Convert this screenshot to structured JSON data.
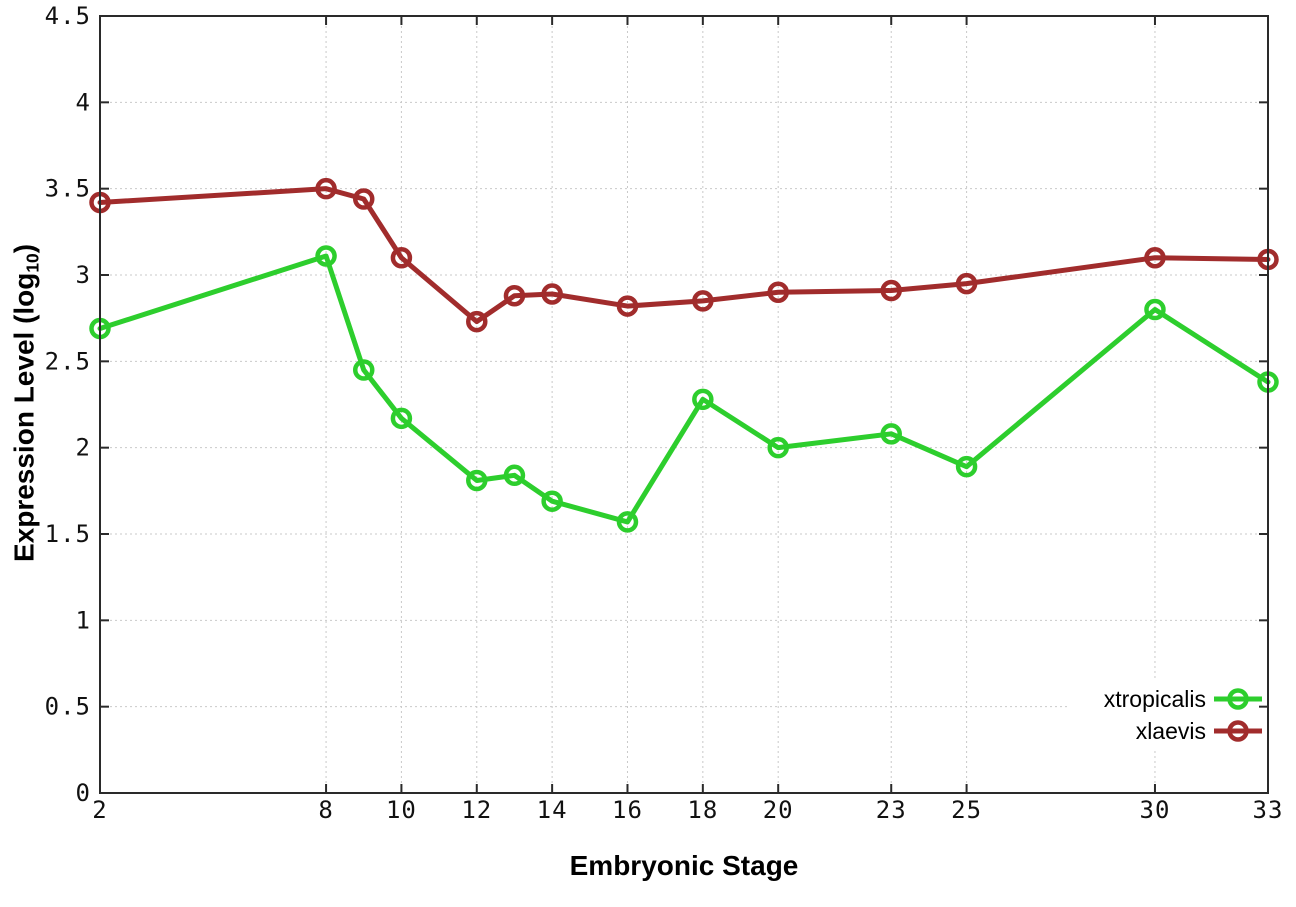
{
  "chart_data": {
    "type": "line",
    "title": "",
    "xlabel": "Embryonic Stage",
    "ylabel": "Expression Level (log10)",
    "ylabel_parts": {
      "main": "Expression Level (log",
      "sub": "10",
      "end": ")"
    },
    "xlim": [
      2,
      33
    ],
    "ylim": [
      0,
      4.5
    ],
    "grid": true,
    "legend_position": "bottom-right-inside",
    "x_ticks": [
      2,
      8,
      10,
      12,
      14,
      16,
      18,
      20,
      23,
      25,
      30,
      33
    ],
    "x_tick_labels": [
      "2",
      "8",
      "10",
      "12",
      "14",
      "16",
      "18",
      "20",
      "23",
      "25",
      "30",
      "33"
    ],
    "y_ticks": [
      0,
      0.5,
      1,
      1.5,
      2,
      2.5,
      3,
      3.5,
      4,
      4.5
    ],
    "y_tick_labels": [
      "0",
      "0.5",
      "1",
      "1.5",
      "2",
      "2.5",
      "3",
      "3.5",
      "4",
      "4.5"
    ],
    "x": [
      2,
      8,
      9,
      10,
      12,
      13,
      14,
      16,
      18,
      20,
      23,
      25,
      30,
      33
    ],
    "series": [
      {
        "name": "xtropicalis",
        "color": "#2dce2d",
        "values": [
          2.69,
          3.11,
          2.45,
          2.17,
          1.81,
          1.84,
          1.69,
          1.57,
          2.28,
          2.0,
          2.08,
          1.89,
          2.8,
          2.38
        ]
      },
      {
        "name": "xlaevis",
        "color": "#a12c2c",
        "values": [
          3.42,
          3.5,
          3.44,
          3.1,
          2.73,
          2.88,
          2.89,
          2.82,
          2.85,
          2.9,
          2.91,
          2.95,
          3.1,
          3.09
        ]
      }
    ],
    "colors": {
      "border": "#2a2a2a",
      "grid": "#c9c9c9",
      "tick_label": "#111111",
      "legend_text": "#000000",
      "background": "#ffffff"
    },
    "marker": "open-circle"
  }
}
